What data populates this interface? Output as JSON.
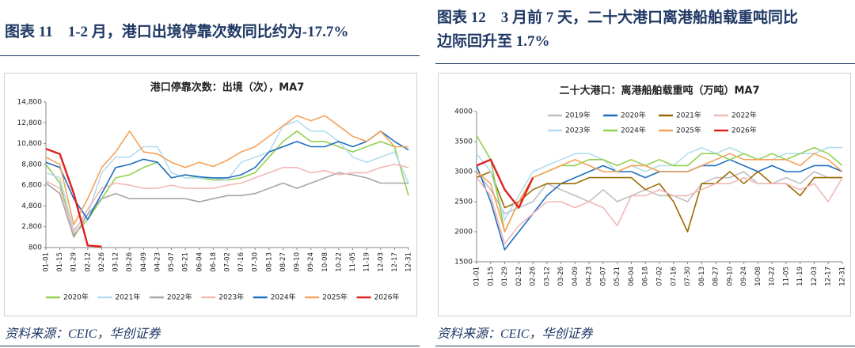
{
  "headings": [
    [
      "图表 11　1-2 月，港口出境停靠次数同比约为-17.7%"
    ],
    [
      "图表 12　3 月前 7 天，二十大港口离港船舶载重吨同比",
      "边际回升至 1.7%"
    ]
  ],
  "sources": [
    "资料来源：CEIC，华创证券",
    "资料来源：CEIC，华创证券"
  ],
  "chart_data": [
    {
      "type": "line",
      "title": "港口停靠次数：出境（次），MA7",
      "categories": [
        "01-01",
        "01-15",
        "01-29",
        "02-12",
        "02-26",
        "03-12",
        "03-26",
        "04-09",
        "04-23",
        "05-07",
        "05-21",
        "06-04",
        "06-18",
        "07-02",
        "07-16",
        "07-30",
        "08-13",
        "08-27",
        "09-10",
        "09-24",
        "10-08",
        "10-22",
        "11-05",
        "11-19",
        "12-03",
        "12-17",
        "12-31"
      ],
      "ylim": [
        800,
        14800
      ],
      "yticks": [
        {
          "value": 800,
          "label": "800"
        },
        {
          "value": 2800,
          "label": "2,800"
        },
        {
          "value": 4800,
          "label": "4,800"
        },
        {
          "value": 6800,
          "label": "6,800"
        },
        {
          "value": 8800,
          "label": "8,800"
        },
        {
          "value": 10800,
          "label": "10,800"
        },
        {
          "value": 12800,
          "label": "12,800"
        },
        {
          "value": 14800,
          "label": "14,800"
        }
      ],
      "legend": "bottom",
      "series": [
        {
          "name": "2020年",
          "color": "#92d050",
          "values": [
            8800,
            7000,
            2000,
            3500,
            5500,
            7500,
            7800,
            8500,
            9000,
            7500,
            7800,
            7500,
            7300,
            7300,
            7500,
            8000,
            9500,
            11000,
            12000,
            11000,
            11000,
            10500,
            10000,
            10500,
            11000,
            10500,
            5800
          ]
        },
        {
          "name": "2021年",
          "color": "#b4dcef",
          "values": [
            8000,
            7500,
            2500,
            4000,
            8000,
            9500,
            9500,
            10500,
            10500,
            8000,
            7500,
            7500,
            7500,
            7300,
            9000,
            9500,
            10000,
            12500,
            13000,
            12000,
            12000,
            11000,
            9500,
            9000,
            9500,
            10000,
            7000
          ]
        },
        {
          "name": "2022年",
          "color": "#a6a6a6",
          "values": [
            7000,
            6000,
            1800,
            4000,
            5500,
            6000,
            5500,
            5500,
            5500,
            5500,
            5500,
            5200,
            5500,
            5800,
            5800,
            6000,
            6500,
            7000,
            6500,
            7000,
            7500,
            8000,
            7800,
            7500,
            7000,
            7000,
            7000
          ]
        },
        {
          "name": "2023年",
          "color": "#f2b8b8",
          "values": [
            7200,
            6500,
            2200,
            4500,
            6500,
            7000,
            6800,
            6500,
            6500,
            6800,
            6500,
            6500,
            6500,
            6800,
            7000,
            7500,
            8000,
            8500,
            8500,
            8000,
            8200,
            7800,
            8000,
            8000,
            8500,
            8800,
            8500
          ]
        },
        {
          "name": "2024年",
          "color": "#1f6fbf",
          "values": [
            9000,
            8500,
            5500,
            3500,
            6000,
            8500,
            8800,
            9300,
            9000,
            7500,
            7800,
            7600,
            7500,
            7500,
            7800,
            8500,
            10000,
            10500,
            11000,
            10500,
            10500,
            11000,
            10500,
            11000,
            12000,
            11000,
            10200
          ]
        },
        {
          "name": "2025年",
          "color": "#f4a259",
          "values": [
            9500,
            8800,
            3000,
            5500,
            8500,
            10000,
            12000,
            10000,
            9800,
            9000,
            8500,
            9000,
            8600,
            9200,
            10000,
            10500,
            11500,
            12500,
            13500,
            13000,
            13500,
            12500,
            11500,
            11000,
            12000,
            10500,
            10500
          ]
        },
        {
          "name": "2026年",
          "color": "#e02020",
          "values": [
            10300,
            9800,
            6000,
            1000,
            900,
            null,
            null,
            null,
            null,
            null,
            null,
            null,
            null,
            null,
            null,
            null,
            null,
            null,
            null,
            null,
            null,
            null,
            null,
            null,
            null,
            null,
            null
          ]
        }
      ]
    },
    {
      "type": "line",
      "title": "二十大港口：离港船舶载重吨（万吨）MA7",
      "categories": [
        "01-01",
        "01-15",
        "01-29",
        "02-12",
        "02-26",
        "03-12",
        "03-26",
        "04-09",
        "04-23",
        "05-07",
        "05-21",
        "06-04",
        "06-18",
        "07-02",
        "07-16",
        "07-30",
        "08-13",
        "08-27",
        "09-10",
        "09-24",
        "10-08",
        "10-22",
        "11-05",
        "11-19",
        "12-03",
        "12-17",
        "12-31"
      ],
      "ylim": [
        1500,
        4000
      ],
      "yticks": [
        1500,
        2000,
        2500,
        3000,
        3500,
        4000
      ],
      "legend": "top",
      "series": [
        {
          "name": "2019年",
          "color": "#bfbfbf",
          "values": [
            3000,
            2700,
            2300,
            2400,
            2500,
            2800,
            2700,
            2600,
            2500,
            2700,
            2500,
            2600,
            2700,
            2600,
            2600,
            2500,
            2800,
            2900,
            2900,
            3000,
            2800,
            2800,
            2900,
            2800,
            3000,
            2900,
            2900
          ]
        },
        {
          "name": "2020年",
          "color": "#1f6fbf",
          "values": [
            3100,
            2500,
            1700,
            2000,
            2300,
            2600,
            2800,
            2900,
            3000,
            3100,
            3000,
            3000,
            2900,
            3000,
            3000,
            3000,
            3100,
            3100,
            3200,
            3100,
            3000,
            3100,
            3000,
            3000,
            3100,
            3100,
            3000
          ]
        },
        {
          "name": "2021年",
          "color": "#9c6a00",
          "values": [
            2900,
            3000,
            2400,
            2500,
            2700,
            2800,
            2800,
            2800,
            2900,
            2900,
            2900,
            2900,
            2700,
            2800,
            2500,
            2000,
            2800,
            2800,
            3000,
            2800,
            3000,
            2800,
            2800,
            2600,
            2900,
            2900,
            2900
          ]
        },
        {
          "name": "2022年",
          "color": "#f2b8b8",
          "values": [
            2900,
            2600,
            1800,
            2100,
            2300,
            2500,
            2500,
            2400,
            2500,
            2400,
            2100,
            2600,
            2600,
            2700,
            2600,
            2600,
            2700,
            2800,
            2800,
            2900,
            2800,
            2800,
            2800,
            2700,
            2800,
            2500,
            2900
          ]
        },
        {
          "name": "2023年",
          "color": "#b4dcef",
          "values": [
            3300,
            3000,
            2200,
            2600,
            3000,
            3100,
            3200,
            3300,
            3300,
            3200,
            3000,
            3100,
            3000,
            3100,
            3100,
            3300,
            3400,
            3300,
            3400,
            3300,
            3200,
            3200,
            3300,
            3300,
            3300,
            3400,
            3400
          ]
        },
        {
          "name": "2024年",
          "color": "#92d050",
          "values": [
            3600,
            3200,
            2000,
            2500,
            2900,
            3000,
            3100,
            3100,
            3200,
            3200,
            3100,
            3200,
            3100,
            3200,
            3100,
            3100,
            3300,
            3300,
            3200,
            3300,
            3200,
            3300,
            3200,
            3300,
            3400,
            3300,
            3100
          ]
        },
        {
          "name": "2025年",
          "color": "#f4a259",
          "values": [
            3000,
            2800,
            2000,
            2500,
            2900,
            3000,
            3100,
            3200,
            3100,
            3000,
            3000,
            3100,
            3100,
            3000,
            3000,
            3000,
            3100,
            3200,
            3300,
            3200,
            3200,
            3200,
            3200,
            3100,
            3300,
            3200,
            3000
          ]
        },
        {
          "name": "2026年",
          "color": "#e02020",
          "values": [
            3100,
            3200,
            2700,
            2400,
            2900,
            null,
            null,
            null,
            null,
            null,
            null,
            null,
            null,
            null,
            null,
            null,
            null,
            null,
            null,
            null,
            null,
            null,
            null,
            null,
            null,
            null,
            null
          ]
        }
      ]
    }
  ]
}
